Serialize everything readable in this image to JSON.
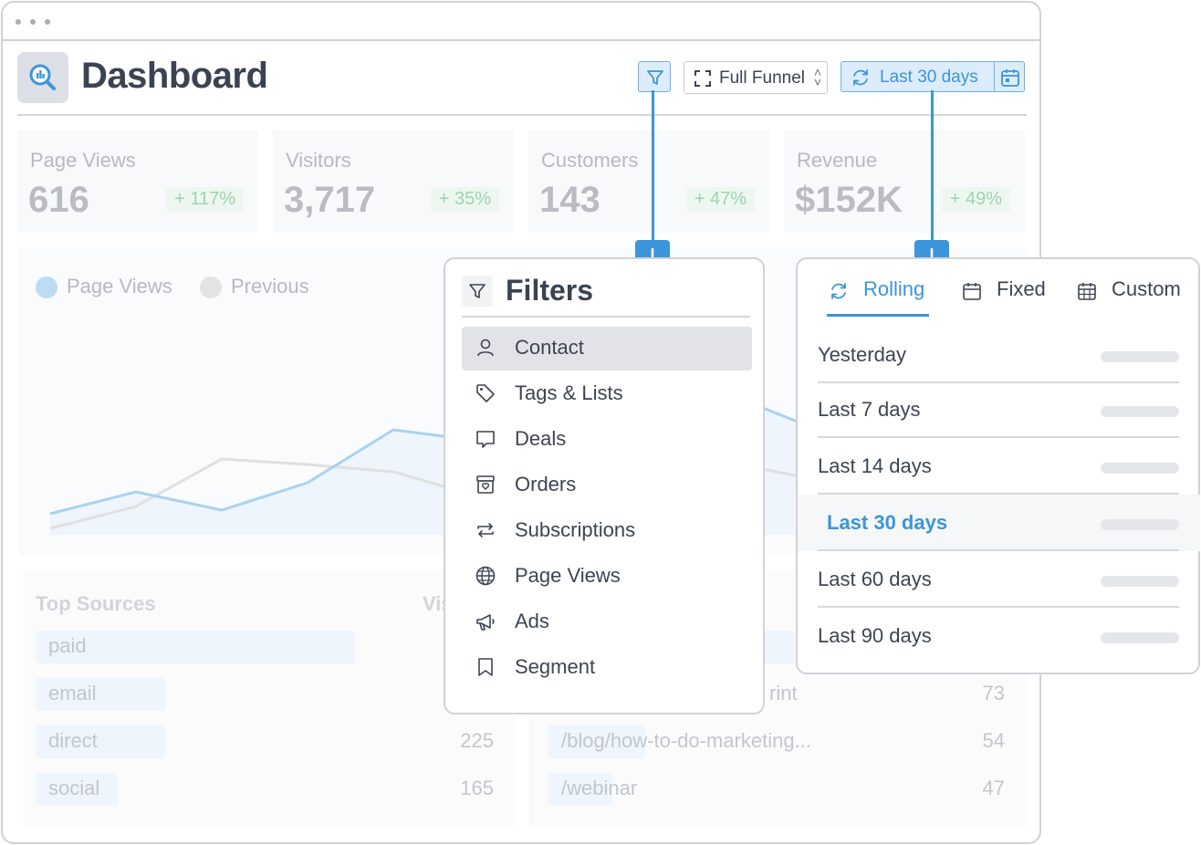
{
  "header": {
    "title": "Dashboard",
    "funnel_select": "Full Funnel",
    "date_range": "Last 30 days"
  },
  "stats": [
    {
      "label": "Page Views",
      "value": "616",
      "delta": "+ 117%"
    },
    {
      "label": "Visitors",
      "value": "3,717",
      "delta": "+ 35%"
    },
    {
      "label": "Customers",
      "value": "143",
      "delta": "+ 47%"
    },
    {
      "label": "Revenue",
      "value": "$152K",
      "delta": "+ 49%"
    }
  ],
  "chart_legend": {
    "current": "Page Views",
    "previous": "Previous"
  },
  "colors": {
    "accent": "#3a96d8",
    "accent_light": "#dcecfa",
    "current_series": "#9dcdf0",
    "previous_series": "#dcdcdc"
  },
  "top_sources": {
    "heading": "Top Sources",
    "visits_heading": "Vis",
    "rows": [
      {
        "source": "paid",
        "visits": ""
      },
      {
        "source": "email",
        "visits": ""
      },
      {
        "source": "direct",
        "visits": "225"
      },
      {
        "source": "social",
        "visits": "165"
      }
    ]
  },
  "top_pages": {
    "rows": [
      {
        "page": "rint",
        "visits": "73"
      },
      {
        "page": "/blog/how-to-do-marketing...",
        "visits": "54"
      },
      {
        "page": "/webinar",
        "visits": "47"
      }
    ]
  },
  "filters_popover": {
    "title": "Filters",
    "items": [
      {
        "label": "Contact",
        "icon": "user-icon"
      },
      {
        "label": "Tags & Lists",
        "icon": "tag-icon"
      },
      {
        "label": "Deals",
        "icon": "chat-bubble-icon"
      },
      {
        "label": "Orders",
        "icon": "archive-box-icon"
      },
      {
        "label": "Subscriptions",
        "icon": "repeat-icon"
      },
      {
        "label": "Page Views",
        "icon": "globe-icon"
      },
      {
        "label": "Ads",
        "icon": "megaphone-icon"
      },
      {
        "label": "Segment",
        "icon": "bookmark-icon"
      }
    ]
  },
  "date_popover": {
    "tabs": [
      {
        "label": "Rolling",
        "icon": "refresh-icon"
      },
      {
        "label": "Fixed",
        "icon": "calendar-icon"
      },
      {
        "label": "Custom",
        "icon": "calendar-grid-icon"
      }
    ],
    "options": [
      "Yesterday",
      "Last 7 days",
      "Last 14 days",
      "Last 30 days",
      "Last 60 days",
      "Last 90 days"
    ]
  }
}
